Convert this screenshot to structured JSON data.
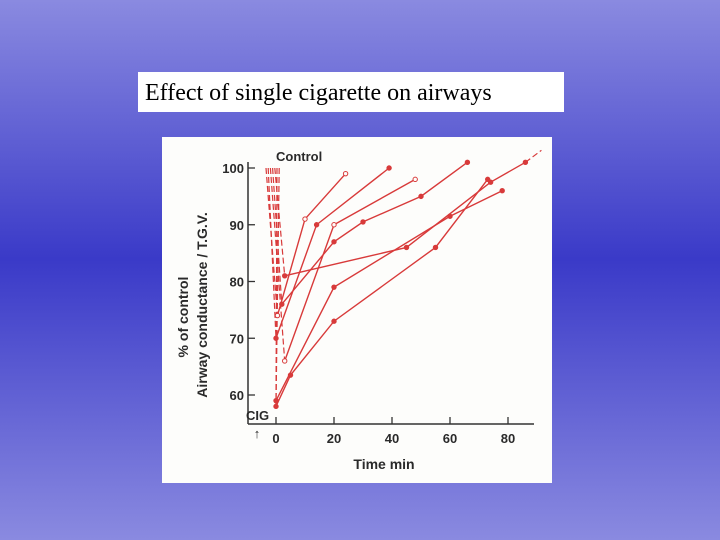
{
  "slide": {
    "title": "Effect of single cigarette on airways"
  },
  "colors": {
    "series": "#d83a3a",
    "axis": "#333333"
  },
  "chart_data": {
    "type": "line",
    "title": "",
    "xlabel": "Time min",
    "ylabel_line1": "% of control",
    "ylabel_line2": "Airway conductance / T.G.V.",
    "xlim": [
      -5,
      90
    ],
    "ylim": [
      55,
      102
    ],
    "xticks": [
      0,
      20,
      40,
      60,
      80
    ],
    "yticks": [
      60,
      70,
      80,
      90,
      100
    ],
    "annotations": {
      "control": "Control",
      "cig": "CIG",
      "cig_arrow": "↑"
    },
    "series": [
      {
        "marker": "open",
        "values": [
          [
            0,
            100
          ],
          [
            0.5,
            74
          ],
          [
            10,
            91
          ],
          [
            24,
            99
          ]
        ]
      },
      {
        "marker": "filled",
        "values": [
          [
            0,
            100
          ],
          [
            0,
            70
          ],
          [
            14,
            90
          ],
          [
            39,
            100
          ]
        ]
      },
      {
        "marker": "open",
        "values": [
          [
            0,
            100
          ],
          [
            3,
            66
          ],
          [
            20,
            90
          ],
          [
            48,
            98
          ]
        ]
      },
      {
        "marker": "filled",
        "values": [
          [
            0,
            100
          ],
          [
            2,
            76
          ],
          [
            20,
            87
          ],
          [
            30,
            90.5
          ],
          [
            50,
            95
          ],
          [
            66,
            101
          ]
        ]
      },
      {
        "marker": "filled",
        "values": [
          [
            0,
            100
          ],
          [
            3,
            81
          ],
          [
            45,
            86
          ],
          [
            74,
            97.5
          ],
          [
            86,
            101
          ]
        ]
      },
      {
        "marker": "filled",
        "values": [
          [
            0,
            100
          ],
          [
            0,
            59
          ],
          [
            20,
            79
          ],
          [
            60,
            91.5
          ],
          [
            78,
            96
          ]
        ]
      },
      {
        "marker": "filled",
        "values": [
          [
            0,
            100
          ],
          [
            0,
            58
          ],
          [
            5,
            63.5
          ],
          [
            20,
            73
          ],
          [
            55,
            86
          ],
          [
            73,
            98
          ]
        ]
      }
    ]
  }
}
